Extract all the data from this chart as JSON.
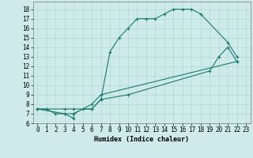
{
  "title": "",
  "xlabel": "Humidex (Indice chaleur)",
  "background_color": "#ceeaea",
  "line_color": "#1a7a6e",
  "xlim": [
    -0.5,
    23.5
  ],
  "ylim": [
    6,
    18.8
  ],
  "xticks": [
    0,
    1,
    2,
    3,
    4,
    5,
    6,
    7,
    8,
    9,
    10,
    11,
    12,
    13,
    14,
    15,
    16,
    17,
    18,
    19,
    20,
    21,
    22,
    23
  ],
  "yticks": [
    6,
    7,
    8,
    9,
    10,
    11,
    12,
    13,
    14,
    15,
    16,
    17,
    18
  ],
  "line1_x": [
    0,
    1,
    2,
    3,
    4,
    4,
    5,
    6,
    7,
    8,
    9,
    10,
    11,
    12,
    13,
    14,
    15,
    16,
    17,
    18,
    21,
    22
  ],
  "line1_y": [
    7.5,
    7.5,
    7.0,
    7.0,
    6.5,
    7.0,
    7.5,
    7.5,
    8.5,
    13.5,
    15.0,
    16.0,
    17.0,
    17.0,
    17.0,
    17.5,
    18.0,
    18.0,
    18.0,
    17.5,
    14.5,
    13.0
  ],
  "line2_x": [
    0,
    3,
    4,
    6,
    7,
    22
  ],
  "line2_y": [
    7.5,
    7.0,
    7.0,
    8.0,
    9.0,
    12.5
  ],
  "line3_x": [
    0,
    3,
    4,
    6,
    7,
    10,
    19,
    20,
    21,
    22
  ],
  "line3_y": [
    7.5,
    7.5,
    7.5,
    7.5,
    8.5,
    9.0,
    11.5,
    13.0,
    14.0,
    12.5
  ],
  "grid_color": "#b0d8d0",
  "marker": "+"
}
